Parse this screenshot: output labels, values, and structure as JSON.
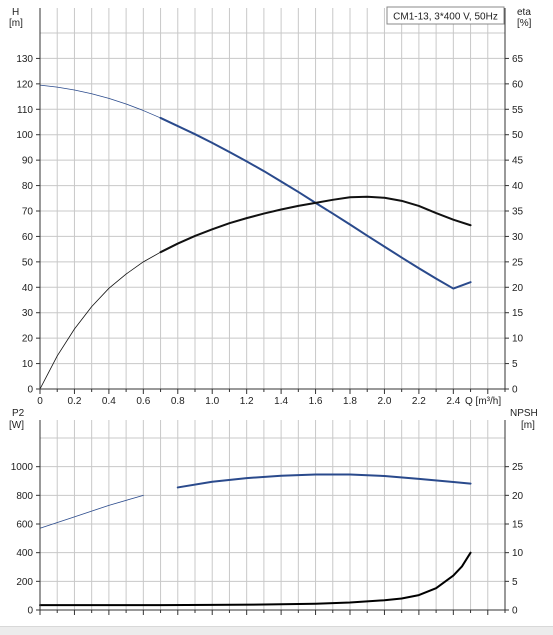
{
  "chart_data": [
    {
      "type": "line",
      "title": "CM1-13, 3*400 V, 50Hz",
      "xlabel": "Q [m³/h]",
      "x_ticks": [
        "0",
        "0.2",
        "0.4",
        "0.6",
        "0.8",
        "1.0",
        "1.2",
        "1.4",
        "1.6",
        "1.8",
        "2.0",
        "2.2",
        "2.4"
      ],
      "xlim": [
        0,
        2.7
      ],
      "y_left": {
        "label_line1": "H",
        "label_line2": "[m]",
        "lim": [
          0,
          140
        ],
        "ticks": [
          "0",
          "10",
          "20",
          "30",
          "40",
          "50",
          "60",
          "70",
          "80",
          "90",
          "100",
          "110",
          "120",
          "130"
        ]
      },
      "y_right": {
        "label_line1": "eta",
        "label_line2": "[%]",
        "lim": [
          0,
          70
        ],
        "ticks": [
          "0",
          "5",
          "10",
          "15",
          "20",
          "25",
          "30",
          "35",
          "40",
          "45",
          "50",
          "55",
          "60",
          "65"
        ]
      },
      "grid": true,
      "series": [
        {
          "axis": "left",
          "color": "#2a4a8c",
          "x": [
            0,
            0.1,
            0.2,
            0.3,
            0.4,
            0.5,
            0.6,
            0.7,
            0.8,
            0.9,
            1.0,
            1.1,
            1.2,
            1.3,
            1.4,
            1.5,
            1.6,
            1.7,
            1.8,
            1.9,
            2.0,
            2.1,
            2.2,
            2.3,
            2.4,
            2.5
          ],
          "y": [
            119.5,
            118.7,
            117.6,
            116.1,
            114.3,
            112.1,
            109.5,
            106.6,
            103.4,
            100.2,
            96.8,
            93.2,
            89.5,
            85.7,
            81.6,
            77.5,
            73.2,
            69.0,
            64.7,
            60.3,
            56.0,
            51.7,
            47.5,
            43.4,
            39.5,
            42.0
          ],
          "bold_from": 0.7
        },
        {
          "axis": "right",
          "color": "#111111",
          "x": [
            0,
            0.1,
            0.2,
            0.3,
            0.4,
            0.5,
            0.6,
            0.7,
            0.8,
            0.9,
            1.0,
            1.1,
            1.2,
            1.3,
            1.4,
            1.5,
            1.6,
            1.7,
            1.8,
            1.9,
            2.0,
            2.1,
            2.2,
            2.3,
            2.4,
            2.5
          ],
          "y": [
            0,
            6.5,
            11.8,
            16.2,
            19.8,
            22.6,
            25.0,
            26.9,
            28.6,
            30.1,
            31.4,
            32.6,
            33.6,
            34.5,
            35.3,
            36.0,
            36.6,
            37.2,
            37.7,
            37.8,
            37.6,
            37.0,
            36.0,
            34.6,
            33.3,
            32.2
          ],
          "bold_from": 0.7
        }
      ]
    },
    {
      "type": "line",
      "xlim": [
        0,
        2.7
      ],
      "y_left": {
        "label_line1": "P2",
        "label_line2": "[W]",
        "lim": [
          0,
          1200
        ],
        "ticks": [
          "0",
          "200",
          "400",
          "600",
          "800",
          "1000"
        ]
      },
      "y_right": {
        "label_line1": "NPSH",
        "label_line2": "[m]",
        "lim": [
          0,
          30
        ],
        "ticks": [
          "0",
          "5",
          "10",
          "15",
          "20",
          "25"
        ]
      },
      "grid": true,
      "series": [
        {
          "axis": "left",
          "color": "#2a4a8c",
          "x": [
            0,
            0.2,
            0.4,
            0.6,
            0.8,
            1.0,
            1.2,
            1.4,
            1.6,
            1.8,
            2.0,
            2.2,
            2.4,
            2.5
          ],
          "y": [
            570,
            650,
            730,
            800,
            855,
            895,
            920,
            937,
            945,
            945,
            935,
            915,
            893,
            882
          ],
          "bold_from": 0.7
        },
        {
          "axis": "right",
          "color": "#000000",
          "x": [
            0,
            0.4,
            0.7,
            1.0,
            1.3,
            1.6,
            1.8,
            2.0,
            2.1,
            2.2,
            2.3,
            2.4,
            2.45,
            2.5
          ],
          "y": [
            0.85,
            0.85,
            0.85,
            0.9,
            0.95,
            1.1,
            1.3,
            1.7,
            2.0,
            2.6,
            3.8,
            6.0,
            7.6,
            10.0
          ],
          "bold_from": 0
        }
      ]
    }
  ]
}
